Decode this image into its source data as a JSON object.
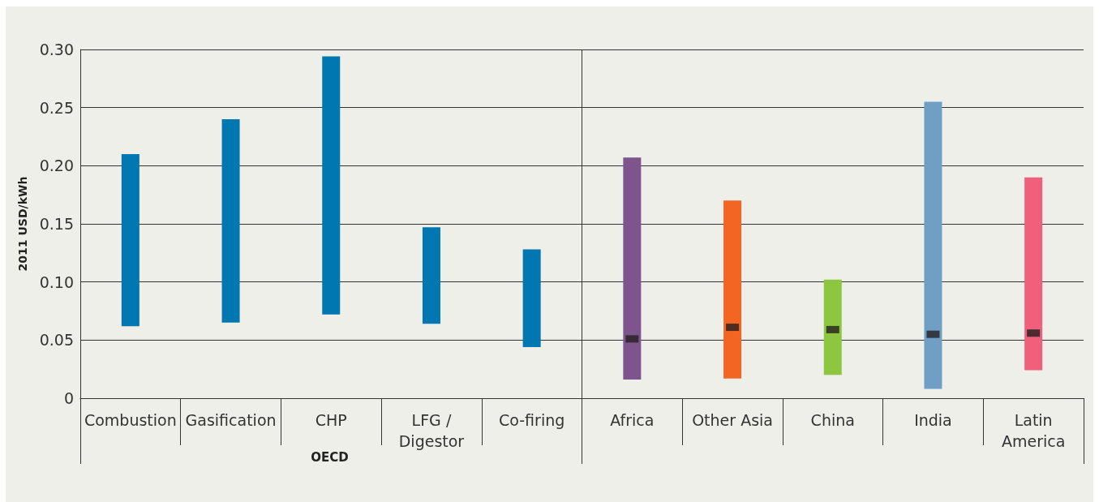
{
  "chart_data": {
    "type": "bar",
    "ylabel": "2011 USD/kWh",
    "categories": [
      "Combustion",
      "Gasification",
      "CHP",
      "LFG /\nDigestor",
      "Co-firing",
      "Africa",
      "Other Asia",
      "China",
      "India",
      "Latin\nAmerica"
    ],
    "base": [
      0.062,
      0.065,
      0.072,
      0.064,
      0.044,
      0.016,
      0.017,
      0.02,
      0.008,
      0.024
    ],
    "values": [
      0.148,
      0.175,
      0.222,
      0.083,
      0.084,
      0.191,
      0.153,
      0.082,
      0.247,
      0.166
    ],
    "colors": [
      "#0077b0",
      "#0077b0",
      "#0077b0",
      "#0077b0",
      "#0077b0",
      "#7e548c",
      "#f26522",
      "#8dc63f",
      "#6f9fc5",
      "#f0607a"
    ],
    "series": [
      {
        "type": "scatter",
        "color": "#231f20",
        "values": [
          null,
          null,
          null,
          null,
          null,
          0.051,
          0.061,
          0.059,
          0.055,
          0.056
        ]
      }
    ],
    "ylim": [
      0,
      0.3
    ],
    "yticks": [
      0,
      {
        "value": 0.05,
        "label": "0.05"
      },
      {
        "value": 0.1,
        "label": "0.10"
      },
      {
        "value": 0.15,
        "label": "0.15"
      },
      {
        "value": 0.2,
        "label": "0.20"
      },
      {
        "value": 0.25,
        "label": "0.25"
      },
      {
        "value": 0.3,
        "label": "0.30"
      }
    ],
    "grid": "y",
    "annotations": [
      "OECD"
    ]
  }
}
